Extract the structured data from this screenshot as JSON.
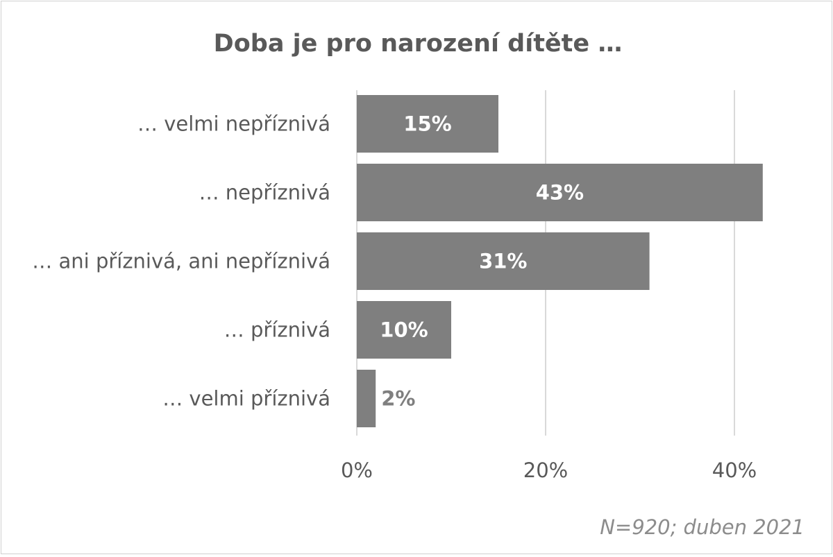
{
  "chart_data": {
    "type": "bar",
    "orientation": "horizontal",
    "title": "Doba je pro narození dítěte …",
    "categories": [
      "… velmi nepříznivá",
      "… nepříznivá",
      "… ani příznivá, ani nepříznivá",
      "… příznivá",
      "… velmi příznivá"
    ],
    "values": [
      15,
      43,
      31,
      10,
      2
    ],
    "data_labels": [
      "15%",
      "43%",
      "31%",
      "10%",
      "2%"
    ],
    "xlim": [
      0,
      40
    ],
    "x_ticks": [
      0,
      20,
      40
    ],
    "x_tick_labels": [
      "0%",
      "20%",
      "40%"
    ],
    "grid": "vertical",
    "legend": "none",
    "bar_color": "#7f7f7f",
    "footnote": "N=920; duben 2021"
  }
}
